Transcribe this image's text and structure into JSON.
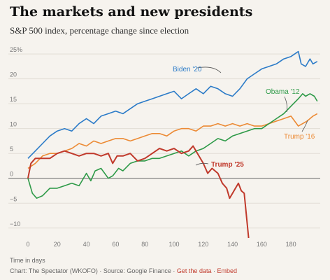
{
  "title": "The markets and new presidents",
  "subtitle": "S&P 500 index, percentage change since election",
  "footer": {
    "xlabel": "Time in days",
    "source": "Chart: The Spectator (WKOFO) · Source: Google Finance · ",
    "get_data": "Get the data",
    "sep": " · ",
    "embed": "Embed"
  },
  "chart_data": {
    "type": "line",
    "title": "The markets and new presidents",
    "subtitle": "S&P 500 index, percentage change since election",
    "xlabel": "Time in days",
    "ylabel": "",
    "xlim": [
      0,
      200
    ],
    "ylim": [
      -12,
      26
    ],
    "x_ticks": [
      0,
      20,
      40,
      60,
      80,
      100,
      120,
      140,
      160,
      180
    ],
    "y_ticks": [
      {
        "value": 25,
        "label": "25%"
      },
      {
        "value": 20,
        "label": "20"
      },
      {
        "value": 15,
        "label": "15"
      },
      {
        "value": 10,
        "label": "10"
      },
      {
        "value": 5,
        "label": "5"
      },
      {
        "value": 0,
        "label": "0"
      },
      {
        "value": -5,
        "label": "−5"
      },
      {
        "value": -10,
        "label": "−10"
      }
    ],
    "grid": true,
    "series": [
      {
        "name": "Biden '20",
        "color": "#2b7bc8",
        "points": [
          [
            0,
            4
          ],
          [
            5,
            5.5
          ],
          [
            10,
            7
          ],
          [
            15,
            8.5
          ],
          [
            20,
            9.5
          ],
          [
            25,
            10
          ],
          [
            30,
            9.5
          ],
          [
            35,
            11
          ],
          [
            40,
            12
          ],
          [
            45,
            11
          ],
          [
            50,
            12.5
          ],
          [
            55,
            13
          ],
          [
            60,
            13.5
          ],
          [
            65,
            13
          ],
          [
            70,
            14
          ],
          [
            75,
            15
          ],
          [
            80,
            15.5
          ],
          [
            85,
            16
          ],
          [
            90,
            16.5
          ],
          [
            95,
            17
          ],
          [
            100,
            17.5
          ],
          [
            105,
            16
          ],
          [
            110,
            17
          ],
          [
            115,
            18
          ],
          [
            120,
            17
          ],
          [
            125,
            18.5
          ],
          [
            130,
            18
          ],
          [
            135,
            17
          ],
          [
            140,
            16.5
          ],
          [
            145,
            18
          ],
          [
            150,
            20
          ],
          [
            155,
            21
          ],
          [
            160,
            22
          ],
          [
            165,
            22.5
          ],
          [
            170,
            23
          ],
          [
            175,
            24
          ],
          [
            180,
            24.5
          ],
          [
            185,
            25.5
          ],
          [
            187,
            23
          ],
          [
            190,
            22.5
          ],
          [
            193,
            24
          ],
          [
            195,
            23
          ],
          [
            198,
            23.5
          ]
        ]
      },
      {
        "name": "Obama '12",
        "color": "#2e9a48",
        "points": [
          [
            0,
            0
          ],
          [
            3,
            -3
          ],
          [
            6,
            -4
          ],
          [
            10,
            -3.5
          ],
          [
            15,
            -2
          ],
          [
            20,
            -2
          ],
          [
            25,
            -1.5
          ],
          [
            30,
            -1
          ],
          [
            35,
            -1.5
          ],
          [
            40,
            1
          ],
          [
            43,
            -0.5
          ],
          [
            46,
            1.5
          ],
          [
            50,
            2
          ],
          [
            55,
            0
          ],
          [
            58,
            0.5
          ],
          [
            62,
            2
          ],
          [
            65,
            1.5
          ],
          [
            70,
            3
          ],
          [
            75,
            3.5
          ],
          [
            80,
            3.5
          ],
          [
            85,
            4
          ],
          [
            90,
            4
          ],
          [
            95,
            4.5
          ],
          [
            100,
            5
          ],
          [
            105,
            5.5
          ],
          [
            110,
            4.5
          ],
          [
            115,
            5.5
          ],
          [
            120,
            6
          ],
          [
            125,
            7
          ],
          [
            130,
            8
          ],
          [
            135,
            7.5
          ],
          [
            140,
            8.5
          ],
          [
            145,
            9
          ],
          [
            150,
            9.5
          ],
          [
            155,
            10
          ],
          [
            160,
            10
          ],
          [
            165,
            11
          ],
          [
            170,
            12
          ],
          [
            175,
            13
          ],
          [
            180,
            14.5
          ],
          [
            185,
            16
          ],
          [
            188,
            17
          ],
          [
            190,
            16.5
          ],
          [
            193,
            17
          ],
          [
            196,
            16.5
          ],
          [
            198,
            15.5
          ]
        ]
      },
      {
        "name": "Trump '16",
        "color": "#ec8a34",
        "points": [
          [
            0,
            2
          ],
          [
            5,
            3
          ],
          [
            10,
            4.5
          ],
          [
            15,
            5
          ],
          [
            20,
            5
          ],
          [
            25,
            5.5
          ],
          [
            30,
            6
          ],
          [
            35,
            7
          ],
          [
            40,
            6.5
          ],
          [
            45,
            7.5
          ],
          [
            50,
            7
          ],
          [
            55,
            7.5
          ],
          [
            60,
            8
          ],
          [
            65,
            8
          ],
          [
            70,
            7.5
          ],
          [
            75,
            8
          ],
          [
            80,
            8.5
          ],
          [
            85,
            9
          ],
          [
            90,
            9
          ],
          [
            95,
            8.5
          ],
          [
            100,
            9.5
          ],
          [
            105,
            10
          ],
          [
            110,
            10
          ],
          [
            115,
            9.5
          ],
          [
            120,
            10.5
          ],
          [
            125,
            10.5
          ],
          [
            130,
            11
          ],
          [
            135,
            10.5
          ],
          [
            140,
            11
          ],
          [
            145,
            10.5
          ],
          [
            150,
            11
          ],
          [
            155,
            10.5
          ],
          [
            160,
            10.5
          ],
          [
            165,
            11
          ],
          [
            170,
            11.5
          ],
          [
            175,
            12
          ],
          [
            180,
            12.5
          ],
          [
            185,
            10.5
          ],
          [
            188,
            11
          ],
          [
            191,
            11.5
          ],
          [
            195,
            12.5
          ],
          [
            198,
            13
          ]
        ]
      },
      {
        "name": "Trump '25",
        "color": "#c0392b",
        "points": [
          [
            0,
            0
          ],
          [
            2,
            3
          ],
          [
            5,
            4
          ],
          [
            10,
            4
          ],
          [
            15,
            4
          ],
          [
            20,
            5
          ],
          [
            25,
            5.5
          ],
          [
            30,
            5
          ],
          [
            35,
            4.5
          ],
          [
            40,
            5
          ],
          [
            45,
            5
          ],
          [
            50,
            4.5
          ],
          [
            55,
            5
          ],
          [
            58,
            3
          ],
          [
            61,
            4.5
          ],
          [
            65,
            4.5
          ],
          [
            70,
            5
          ],
          [
            75,
            3.5
          ],
          [
            80,
            4
          ],
          [
            85,
            5
          ],
          [
            90,
            6
          ],
          [
            95,
            5.5
          ],
          [
            100,
            6
          ],
          [
            105,
            5
          ],
          [
            110,
            5.5
          ],
          [
            113,
            6.5
          ],
          [
            117,
            4.5
          ],
          [
            120,
            3
          ],
          [
            123,
            1
          ],
          [
            126,
            2
          ],
          [
            130,
            1
          ],
          [
            133,
            -1
          ],
          [
            136,
            -2
          ],
          [
            138,
            -4
          ],
          [
            140,
            -3
          ],
          [
            142,
            -2
          ],
          [
            144,
            -1
          ],
          [
            146,
            -2.5
          ],
          [
            148,
            -3
          ],
          [
            150,
            -9
          ],
          [
            151,
            -12
          ]
        ]
      }
    ],
    "annotations": [
      {
        "text": "Biden '20",
        "series": "Biden '20",
        "color": "#2b7bc8"
      },
      {
        "text": "Obama '12",
        "series": "Obama '12",
        "color": "#2e9a48"
      },
      {
        "text": "Trump '16",
        "series": "Trump '16",
        "color": "#ec8a34"
      },
      {
        "text": "Trump '25",
        "series": "Trump '25",
        "color": "#c0392b",
        "bold": true
      }
    ]
  }
}
